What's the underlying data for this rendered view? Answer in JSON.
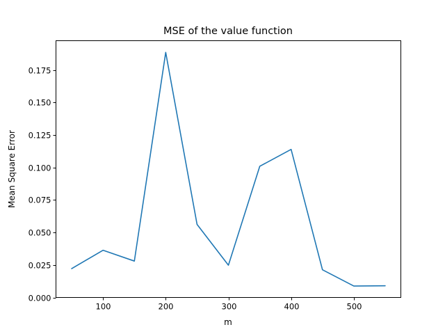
{
  "chart_data": {
    "type": "line",
    "title": "MSE of the value function",
    "xlabel": "m",
    "ylabel": "Mean Square Error",
    "x": [
      50,
      100,
      150,
      200,
      250,
      300,
      350,
      400,
      450,
      500,
      550
    ],
    "series": [
      {
        "values": [
          0.0222,
          0.0363,
          0.028,
          0.1885,
          0.0562,
          0.0248,
          0.1009,
          0.1139,
          0.0213,
          0.0088,
          0.009
        ]
      }
    ],
    "xlim": [
      25,
      575
    ],
    "ylim": [
      0.0,
      0.1975
    ],
    "xticks": [
      100,
      200,
      300,
      400,
      500
    ],
    "xtick_labels": [
      "100",
      "200",
      "300",
      "400",
      "500"
    ],
    "yticks": [
      0.0,
      0.025,
      0.05,
      0.075,
      0.1,
      0.125,
      0.15,
      0.175
    ],
    "ytick_labels": [
      "0.000",
      "0.025",
      "0.050",
      "0.075",
      "0.100",
      "0.125",
      "0.150",
      "0.175"
    ],
    "grid": false,
    "colors": {
      "line": "#1f77b4"
    }
  }
}
